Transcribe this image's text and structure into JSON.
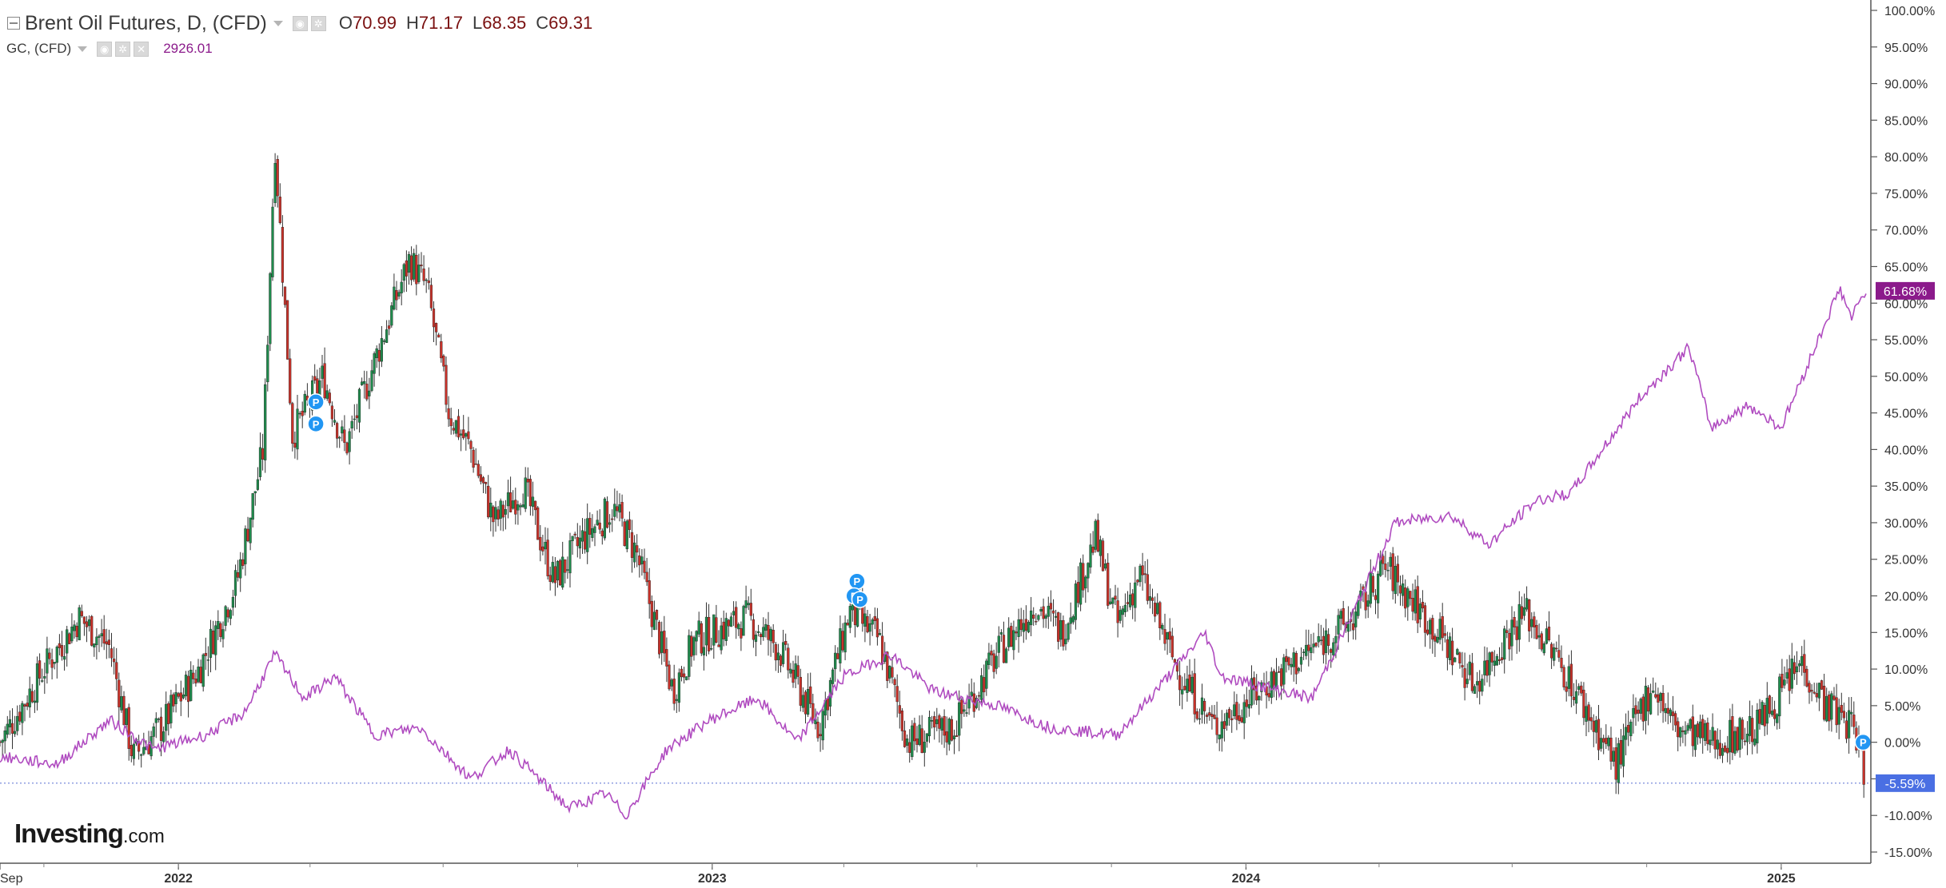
{
  "legend": {
    "title": "Brent Oil Futures, D, (CFD)",
    "open_label": "O",
    "open": "70.99",
    "high_label": "H",
    "high": "71.17",
    "low_label": "L",
    "low": "68.35",
    "close_label": "C",
    "close": "69.31",
    "overlay_title": "GC, (CFD)",
    "overlay_value": "2926.01",
    "icons": [
      "collapse-icon",
      "caret-down-icon",
      "eye-icon",
      "gear-icon",
      "close-icon"
    ]
  },
  "logo": {
    "brand": "Investing",
    "suffix": ".com"
  },
  "colors": {
    "up_candle": "#1f8a4c",
    "down_candle": "#c8322a",
    "wick": "#333333",
    "overlay_line": "#b04cc0",
    "overlay_badge": "#8b1a8b",
    "brent_badge": "#4a6fe3",
    "event_marker": "#2196f3",
    "baseline": "#6b7fd6"
  },
  "chart_data": {
    "type": "candlestick_with_line_overlay",
    "title": "Brent Oil Futures, D, (CFD)",
    "y_axis": {
      "unit": "percent change",
      "range": [
        -15,
        100
      ],
      "ticks": [
        "100.00%",
        "95.00%",
        "90.00%",
        "85.00%",
        "80.00%",
        "75.00%",
        "70.00%",
        "65.00%",
        "60.00%",
        "55.00%",
        "50.00%",
        "45.00%",
        "40.00%",
        "35.00%",
        "30.00%",
        "25.00%",
        "20.00%",
        "15.00%",
        "10.00%",
        "5.00%",
        "0.00%",
        "-5.00%",
        "-10.00%",
        "-15.00%"
      ]
    },
    "x_axis": {
      "range": [
        "2021-09-01",
        "2025-02-28"
      ],
      "ticks": [
        {
          "label": "Sep",
          "date": "2021-09-01"
        },
        {
          "label": "2022",
          "date": "2022-01-01"
        },
        {
          "label": "2023",
          "date": "2023-01-01"
        },
        {
          "label": "2024",
          "date": "2024-01-01"
        },
        {
          "label": "2025",
          "date": "2025-01-01"
        }
      ]
    },
    "series": [
      {
        "name": "Brent Oil Futures, D, (CFD)",
        "kind": "candlestick",
        "last_value_label": "-5.59%",
        "points": [
          [
            "2021-09-01",
            0
          ],
          [
            "2021-10-01",
            10
          ],
          [
            "2021-10-25",
            17
          ],
          [
            "2021-11-15",
            13
          ],
          [
            "2021-12-01",
            -2
          ],
          [
            "2021-12-20",
            2
          ],
          [
            "2022-01-15",
            10
          ],
          [
            "2022-02-10",
            22
          ],
          [
            "2022-02-28",
            40
          ],
          [
            "2022-03-08",
            82
          ],
          [
            "2022-03-20",
            42
          ],
          [
            "2022-04-10",
            50
          ],
          [
            "2022-04-25",
            40
          ],
          [
            "2022-05-15",
            52
          ],
          [
            "2022-06-08",
            66
          ],
          [
            "2022-06-20",
            62
          ],
          [
            "2022-07-05",
            45
          ],
          [
            "2022-07-20",
            40
          ],
          [
            "2022-08-05",
            30
          ],
          [
            "2022-08-25",
            35
          ],
          [
            "2022-09-15",
            22
          ],
          [
            "2022-10-05",
            28
          ],
          [
            "2022-10-25",
            32
          ],
          [
            "2022-11-10",
            26
          ],
          [
            "2022-12-05",
            7
          ],
          [
            "2022-12-20",
            14
          ],
          [
            "2023-01-25",
            17
          ],
          [
            "2023-02-15",
            13
          ],
          [
            "2023-03-15",
            2
          ],
          [
            "2023-04-05",
            18
          ],
          [
            "2023-04-25",
            14
          ],
          [
            "2023-05-15",
            0
          ],
          [
            "2023-06-15",
            2
          ],
          [
            "2023-07-15",
            12
          ],
          [
            "2023-08-10",
            19
          ],
          [
            "2023-08-28",
            15
          ],
          [
            "2023-09-20",
            28
          ],
          [
            "2023-10-05",
            16
          ],
          [
            "2023-10-20",
            23
          ],
          [
            "2023-11-15",
            10
          ],
          [
            "2023-12-10",
            2
          ],
          [
            "2024-01-15",
            8
          ],
          [
            "2024-02-10",
            12
          ],
          [
            "2024-03-15",
            17
          ],
          [
            "2024-04-05",
            24
          ],
          [
            "2024-04-25",
            19
          ],
          [
            "2024-05-15",
            14
          ],
          [
            "2024-06-05",
            8
          ],
          [
            "2024-06-25",
            14
          ],
          [
            "2024-07-10",
            18
          ],
          [
            "2024-08-05",
            10
          ],
          [
            "2024-09-10",
            -3
          ],
          [
            "2024-10-05",
            8
          ],
          [
            "2024-10-20",
            2
          ],
          [
            "2024-11-15",
            0
          ],
          [
            "2024-12-15",
            2
          ],
          [
            "2025-01-15",
            11
          ],
          [
            "2025-02-01",
            5
          ],
          [
            "2025-02-20",
            2
          ],
          [
            "2025-02-28",
            -5.59
          ]
        ]
      },
      {
        "name": "GC, (CFD)",
        "kind": "line",
        "last_value_label": "61.68%",
        "points": [
          [
            "2021-09-01",
            -2
          ],
          [
            "2021-10-10",
            -3
          ],
          [
            "2021-11-15",
            3
          ],
          [
            "2021-12-15",
            -1
          ],
          [
            "2022-01-20",
            1
          ],
          [
            "2022-02-15",
            4
          ],
          [
            "2022-03-08",
            12
          ],
          [
            "2022-03-28",
            6
          ],
          [
            "2022-04-18",
            9
          ],
          [
            "2022-05-15",
            1
          ],
          [
            "2022-06-15",
            2
          ],
          [
            "2022-07-20",
            -5
          ],
          [
            "2022-08-15",
            -1
          ],
          [
            "2022-09-25",
            -9
          ],
          [
            "2022-10-20",
            -7
          ],
          [
            "2022-11-03",
            -10
          ],
          [
            "2022-12-01",
            -1
          ],
          [
            "2022-12-30",
            3
          ],
          [
            "2023-02-01",
            6
          ],
          [
            "2023-02-28",
            0
          ],
          [
            "2023-04-01",
            9
          ],
          [
            "2023-05-03",
            12
          ],
          [
            "2023-06-01",
            7
          ],
          [
            "2023-07-15",
            5
          ],
          [
            "2023-08-20",
            2
          ],
          [
            "2023-10-05",
            1
          ],
          [
            "2023-10-27",
            6
          ],
          [
            "2023-12-04",
            15
          ],
          [
            "2023-12-15",
            9
          ],
          [
            "2024-02-15",
            6
          ],
          [
            "2024-03-15",
            18
          ],
          [
            "2024-04-12",
            30
          ],
          [
            "2024-05-20",
            31
          ],
          [
            "2024-06-15",
            27
          ],
          [
            "2024-07-17",
            33
          ],
          [
            "2024-08-10",
            34
          ],
          [
            "2024-09-26",
            47
          ],
          [
            "2024-10-30",
            54
          ],
          [
            "2024-11-14",
            43
          ],
          [
            "2024-12-10",
            46
          ],
          [
            "2025-01-01",
            43
          ],
          [
            "2025-02-10",
            62
          ],
          [
            "2025-02-18",
            58
          ],
          [
            "2025-02-28",
            61.68
          ]
        ]
      }
    ],
    "event_markers": [
      {
        "label": "P",
        "date": "2022-04-05",
        "value": 46.5
      },
      {
        "label": "P",
        "date": "2022-04-05",
        "value": 43.5
      },
      {
        "label": "P",
        "date": "2023-04-10",
        "value": 22
      },
      {
        "label": "P",
        "date": "2023-04-08",
        "value": 20
      },
      {
        "label": "P",
        "date": "2023-04-12",
        "value": 19.5
      },
      {
        "label": "P",
        "date": "2025-02-26",
        "value": 0
      }
    ]
  }
}
